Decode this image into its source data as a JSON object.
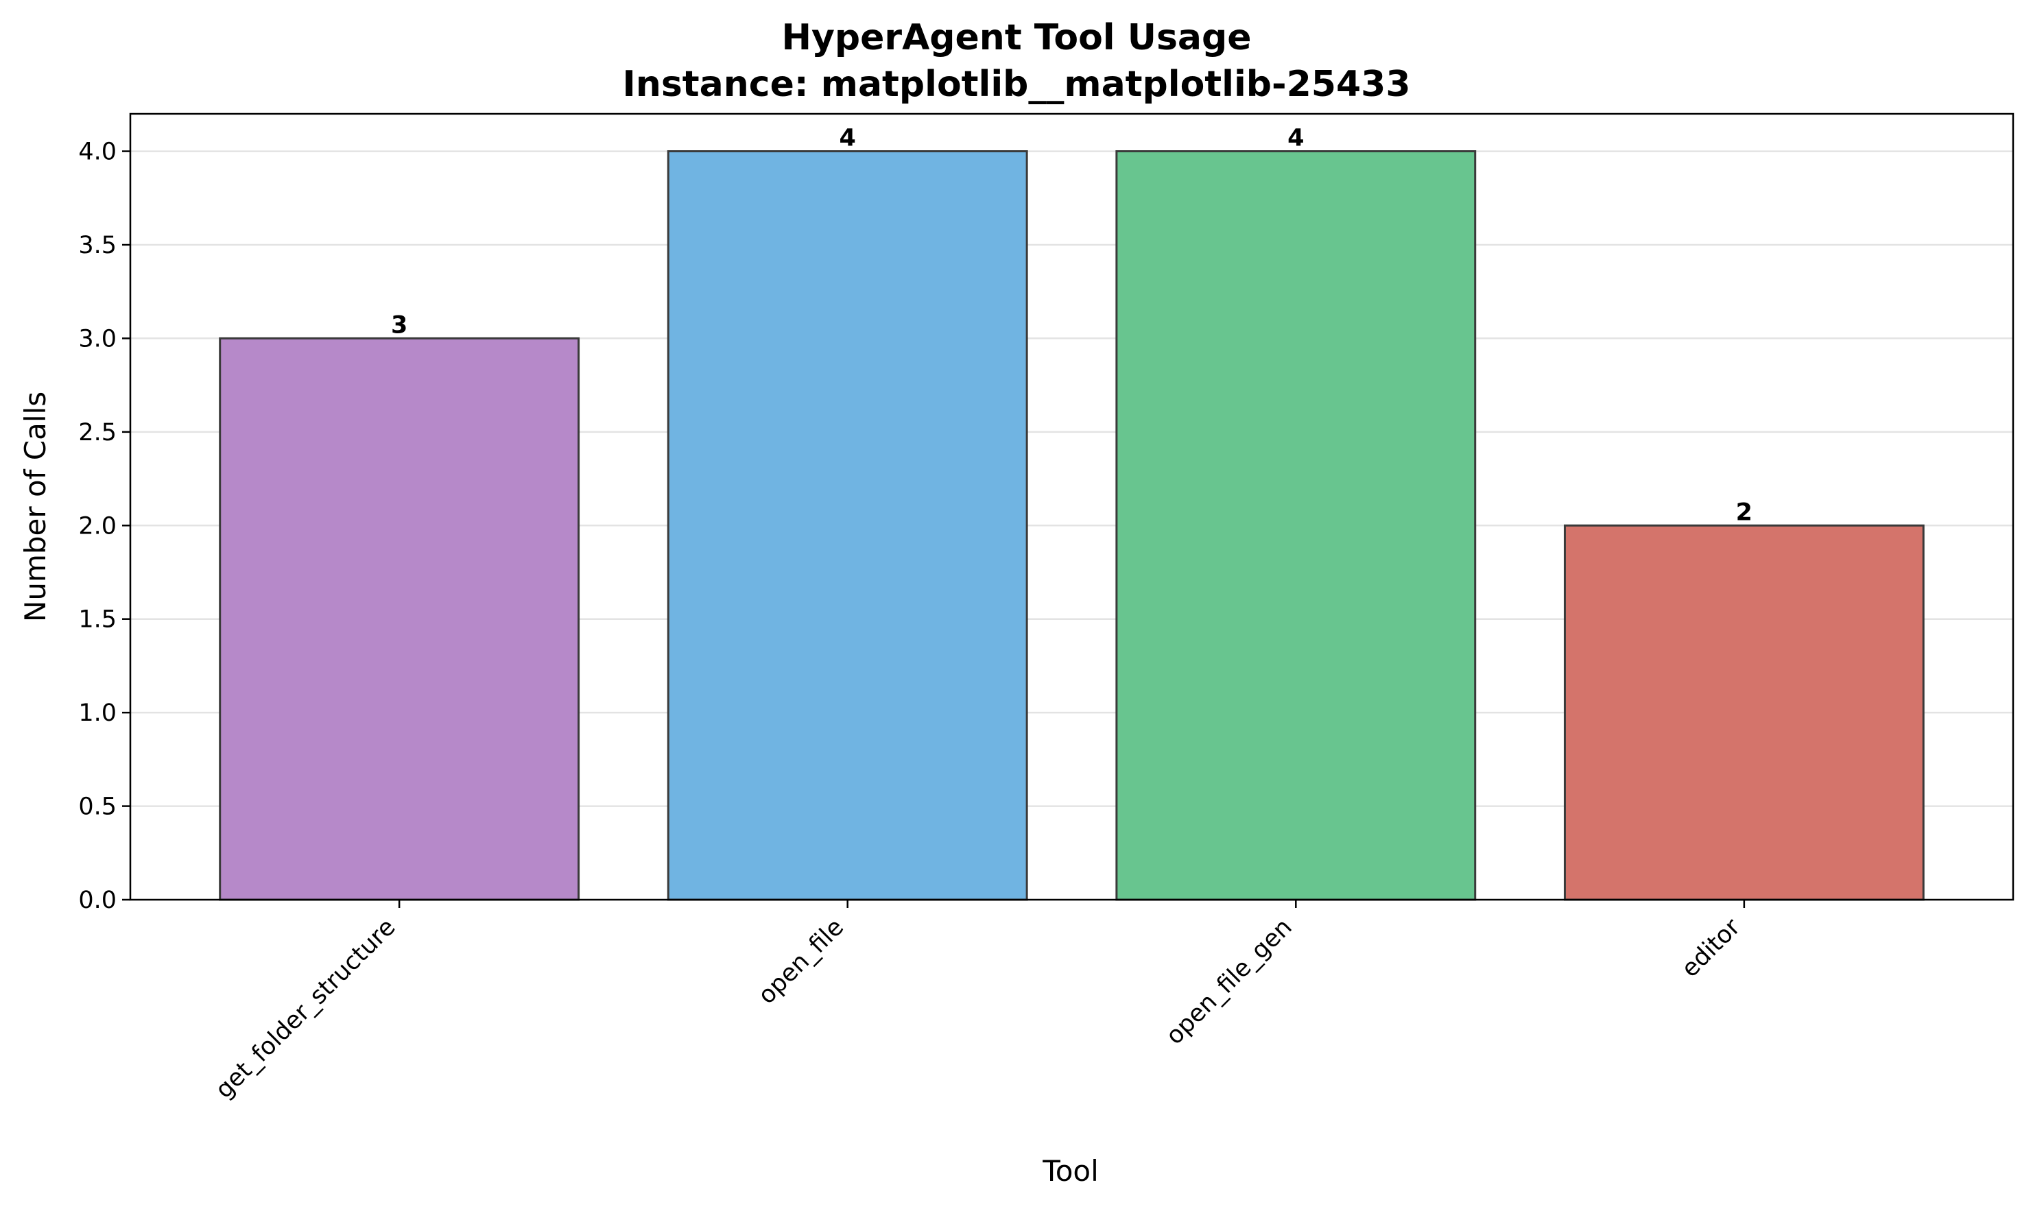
{
  "chart_data": {
    "type": "bar",
    "title": "HyperAgent Tool Usage",
    "subtitle": "Instance: matplotlib__matplotlib-25433",
    "xlabel": "Tool",
    "ylabel": "Number of Calls",
    "categories": [
      "get_folder_structure",
      "open_file",
      "open_file_gen",
      "editor"
    ],
    "values": [
      3,
      4,
      4,
      2
    ],
    "value_labels": [
      "3",
      "4",
      "4",
      "2"
    ],
    "colors": [
      "#b689c9",
      "#70b4e2",
      "#68c58f",
      "#d4746b"
    ],
    "ylim": [
      0,
      4.2
    ],
    "yticks": [
      0.0,
      0.5,
      1.0,
      1.5,
      2.0,
      2.5,
      3.0,
      3.5,
      4.0
    ],
    "ytick_labels": [
      "0.0",
      "0.5",
      "1.0",
      "1.5",
      "2.0",
      "2.5",
      "3.0",
      "3.5",
      "4.0"
    ],
    "grid": "y",
    "legend": "none"
  }
}
